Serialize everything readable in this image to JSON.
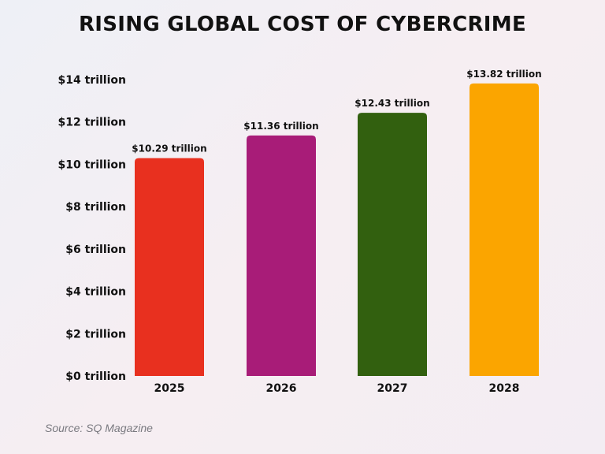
{
  "chart_data": {
    "type": "bar",
    "title": "RISING GLOBAL COST OF CYBERCRIME",
    "categories": [
      "2025",
      "2026",
      "2027",
      "2028"
    ],
    "values": [
      10.29,
      11.36,
      12.43,
      13.82
    ],
    "data_labels": [
      "$10.29 trillion",
      "$11.36 trillion",
      "$12.43 trillion",
      "$13.82 trillion"
    ],
    "colors": [
      "#e8301f",
      "#a81c78",
      "#32600f",
      "#fba500"
    ],
    "y_ticks": [
      0,
      2,
      4,
      6,
      8,
      10,
      12,
      14
    ],
    "y_tick_labels": [
      "$0 trillion",
      "$2 trillion",
      "$4 trillion",
      "$6 trillion",
      "$8 trillion",
      "$10 trillion",
      "$12 trillion",
      "$14 trillion"
    ],
    "ylim": [
      0,
      14
    ],
    "xlabel": "",
    "ylabel": "",
    "grid": false,
    "legend": "none"
  },
  "source": "Source: SQ Magazine"
}
